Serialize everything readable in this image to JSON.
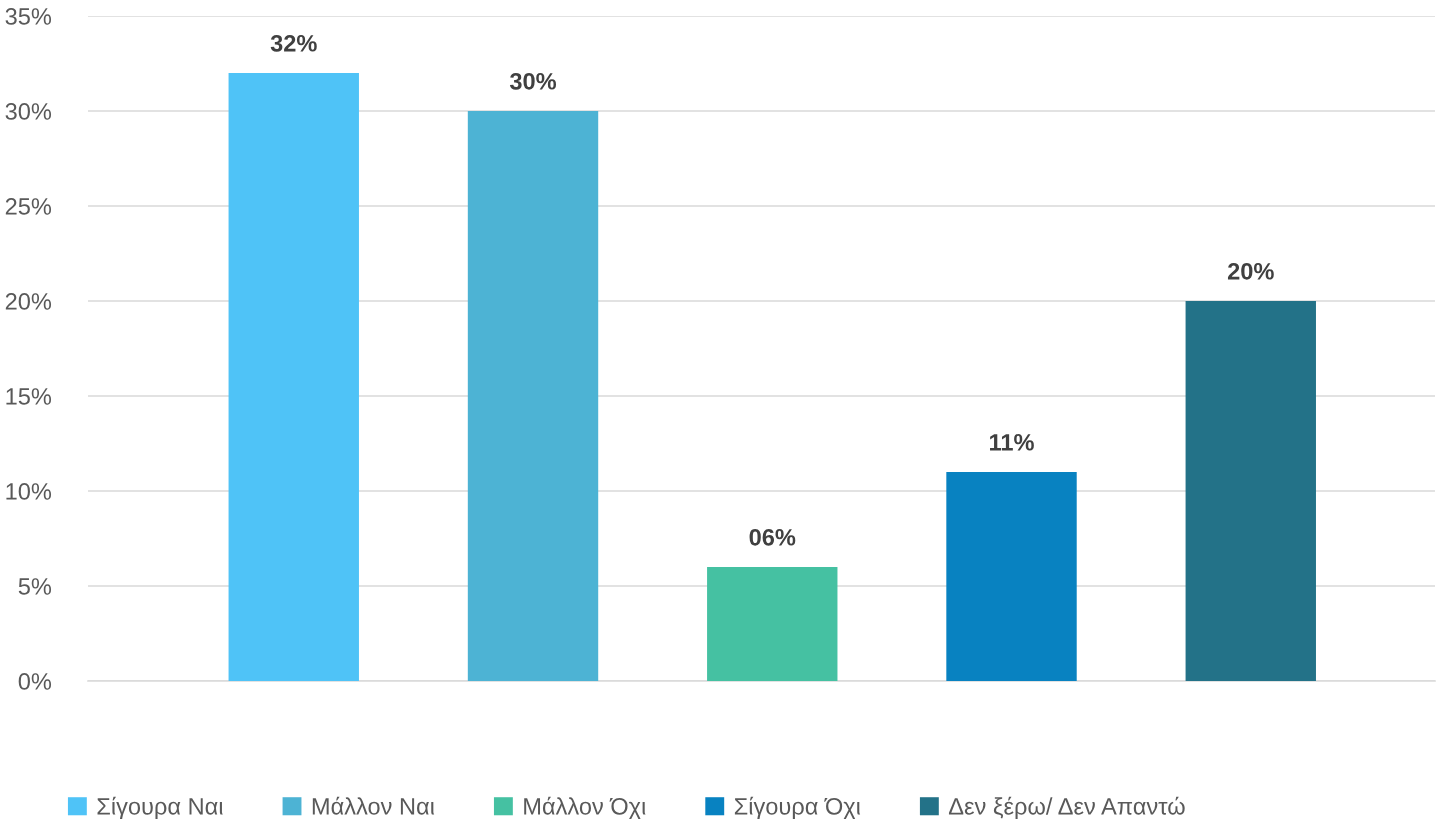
{
  "chart_data": {
    "type": "bar",
    "categories": [
      null,
      null,
      null,
      null,
      null
    ],
    "series": [
      {
        "name": "Σίγουρα Ναι",
        "color": "#4fc3f7",
        "values": [
          32,
          null,
          null,
          null,
          null
        ],
        "value_labels": [
          "32%",
          null,
          null,
          null,
          null
        ]
      },
      {
        "name": "Μάλλον Ναι",
        "color": "#4db3d4",
        "values": [
          null,
          30,
          null,
          null,
          null
        ],
        "value_labels": [
          null,
          "30%",
          null,
          null,
          null
        ]
      },
      {
        "name": "Μάλλον Όχι",
        "color": "#45c1a2",
        "values": [
          null,
          null,
          6,
          null,
          null
        ],
        "value_labels": [
          null,
          null,
          "06%",
          null,
          null
        ]
      },
      {
        "name": "Σίγουρα Όχι",
        "color": "#0882c1",
        "values": [
          null,
          null,
          null,
          11,
          null
        ],
        "value_labels": [
          null,
          null,
          null,
          "11%",
          null
        ]
      },
      {
        "name": "Δεν ξέρω/ Δεν Απαντώ",
        "color": "#237288",
        "values": [
          null,
          null,
          null,
          null,
          20
        ],
        "value_labels": [
          null,
          null,
          null,
          null,
          "20%"
        ]
      }
    ],
    "ylim": [
      0,
      35
    ],
    "yticks": [
      {
        "value": 0,
        "label": "0%"
      },
      {
        "value": 5,
        "label": "5%"
      },
      {
        "value": 10,
        "label": "10%"
      },
      {
        "value": 15,
        "label": "15%"
      },
      {
        "value": 20,
        "label": "20%"
      },
      {
        "value": 25,
        "label": "25%"
      },
      {
        "value": 30,
        "label": "30%"
      },
      {
        "value": 35,
        "label": "35%"
      }
    ],
    "grid": "y",
    "legend": "bottom"
  }
}
